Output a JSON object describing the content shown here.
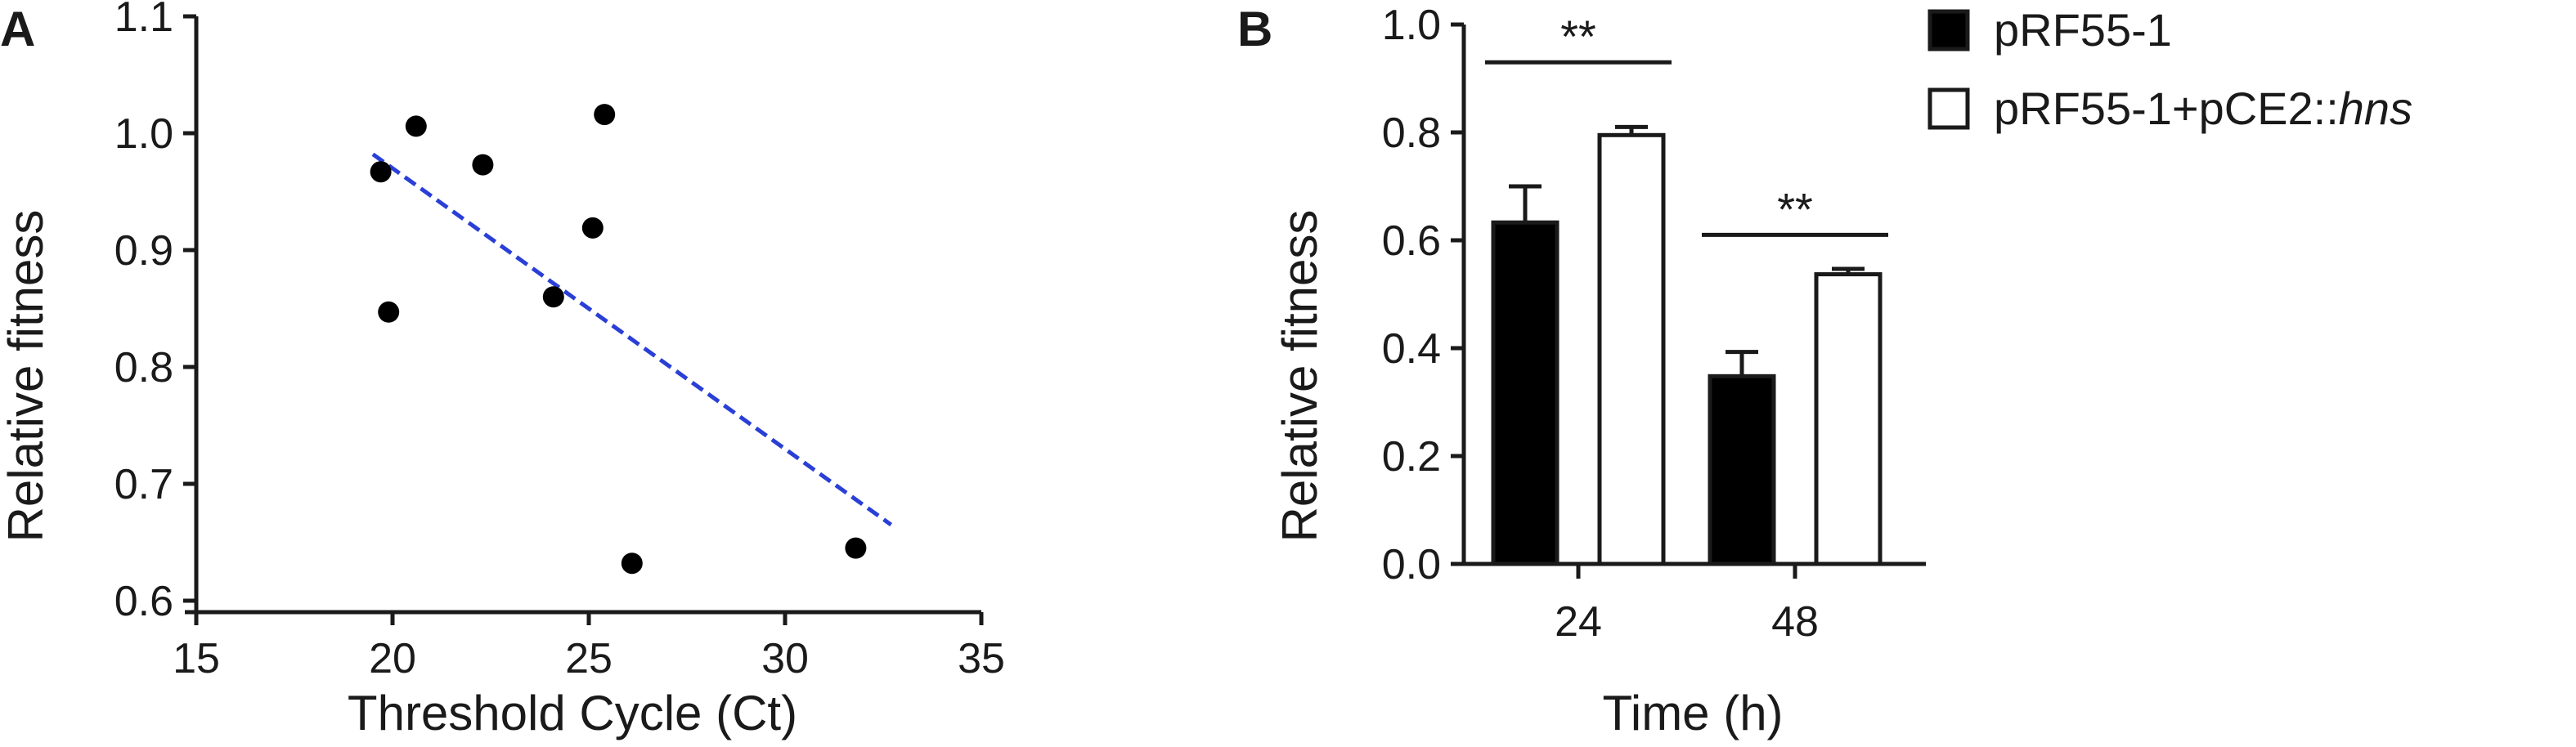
{
  "panels": [
    "A",
    "B"
  ],
  "chart_data": [
    {
      "type": "scatter",
      "panel_label": "A",
      "xlabel": "Threshold Cycle (Ct)",
      "ylabel": "Relative fitness",
      "xlim": [
        15,
        35
      ],
      "ylim": [
        0.6,
        1.1
      ],
      "x_ticks": [
        15,
        20,
        25,
        30,
        35
      ],
      "y_ticks": [
        "0.6",
        "0.7",
        "0.8",
        "0.9",
        "1.0",
        "1.1"
      ],
      "points": [
        {
          "x": 19.7,
          "y": 0.967
        },
        {
          "x": 19.9,
          "y": 0.847
        },
        {
          "x": 20.6,
          "y": 1.006
        },
        {
          "x": 22.3,
          "y": 0.973
        },
        {
          "x": 24.1,
          "y": 0.86
        },
        {
          "x": 25.1,
          "y": 0.919
        },
        {
          "x": 25.4,
          "y": 1.016
        },
        {
          "x": 26.1,
          "y": 0.632
        },
        {
          "x": 31.8,
          "y": 0.645
        }
      ],
      "trendline": {
        "x": [
          19.5,
          32.7
        ],
        "y": [
          0.982,
          0.665
        ],
        "color": "#2a3fd6",
        "style": "dashed"
      },
      "point_color": "#000000"
    },
    {
      "type": "bar",
      "panel_label": "B",
      "xlabel": "Time (h)",
      "ylabel": "Relative fitness",
      "ylim": [
        0,
        1.0
      ],
      "y_ticks": [
        "0.0",
        "0.2",
        "0.4",
        "0.6",
        "0.8",
        "1.0"
      ],
      "categories": [
        "24",
        "48"
      ],
      "series": [
        {
          "name": "pRF55-1",
          "name_italic": "",
          "fill": "#000000",
          "values": [
            0.633,
            0.348
          ],
          "errors": [
            0.067,
            0.045
          ]
        },
        {
          "name": "pRF55-1+pCE2::",
          "name_italic": "hns",
          "fill": "#ffffff",
          "values": [
            0.795,
            0.537
          ],
          "errors": [
            0.015,
            0.01
          ]
        }
      ],
      "significance": [
        {
          "category": "24",
          "label": "**",
          "y": 0.93
        },
        {
          "category": "48",
          "label": "**",
          "y": 0.61
        }
      ],
      "legend_position": "top-right"
    }
  ]
}
